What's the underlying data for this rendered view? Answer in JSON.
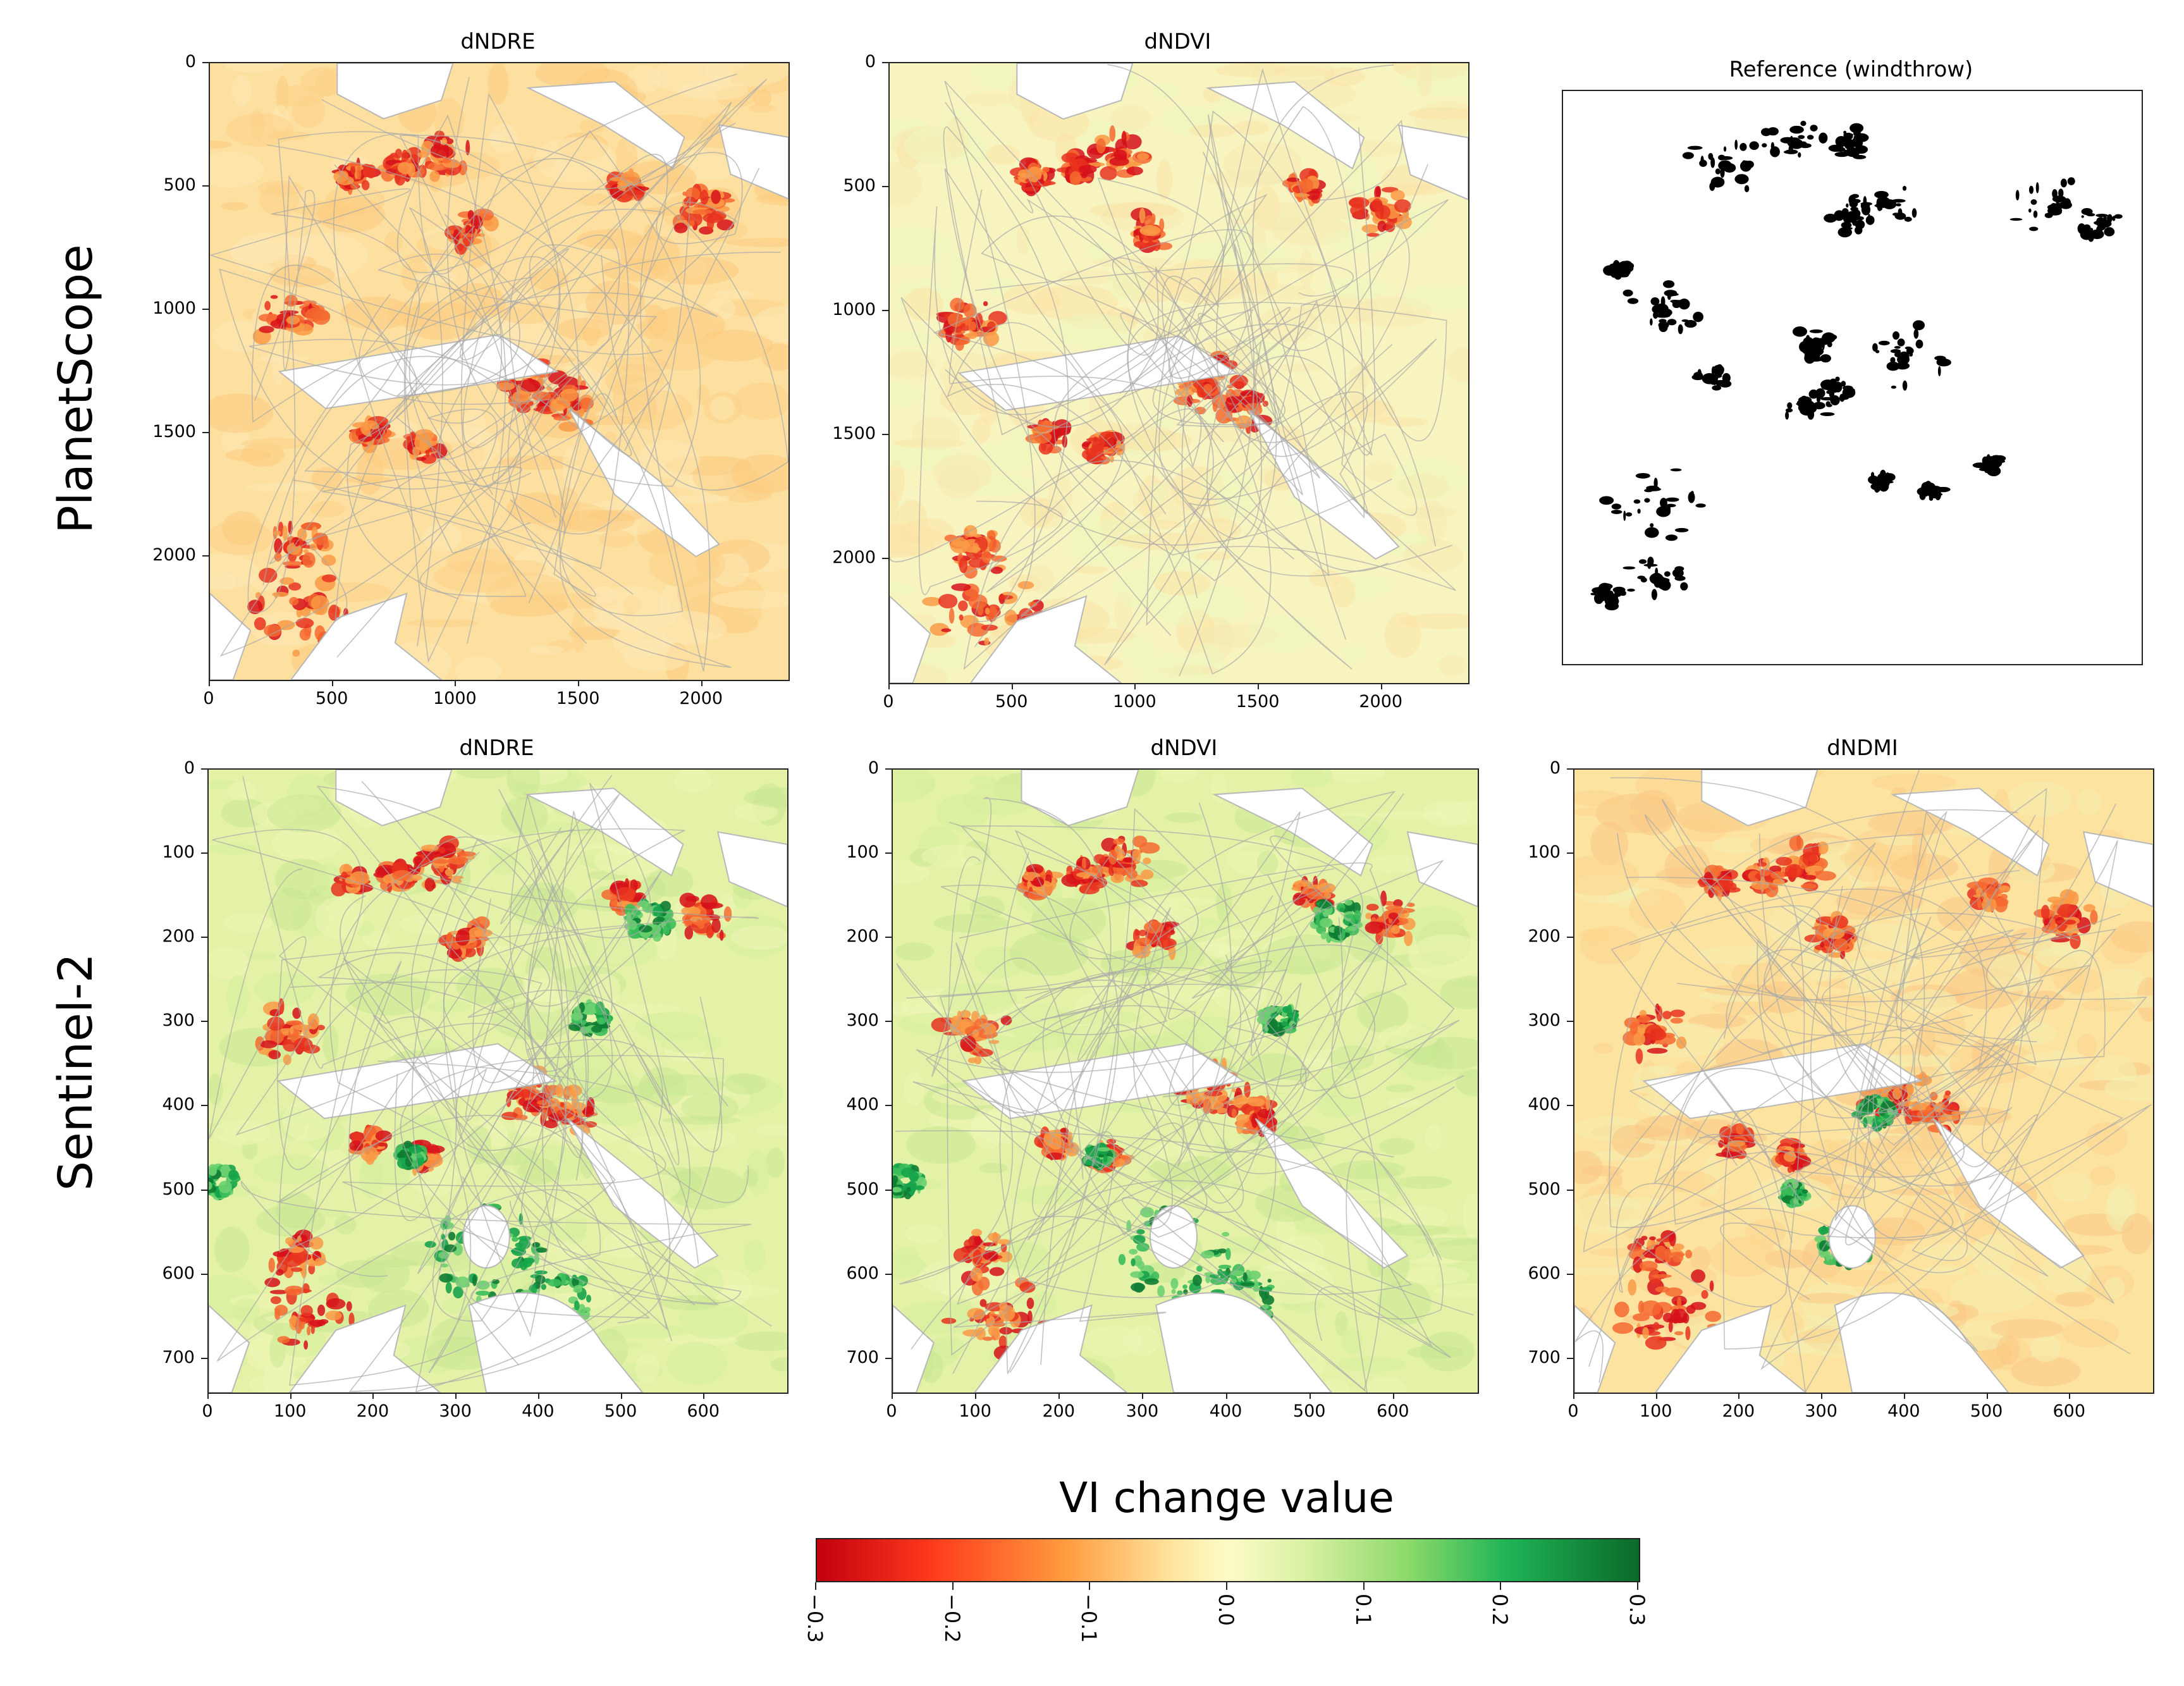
{
  "row_labels": [
    "PlanetScope",
    "Sentinel-2"
  ],
  "colorbar": {
    "title": "VI change value",
    "ticks": [
      "−0.3",
      "−0.2",
      "−0.1",
      "0.0",
      "0.1",
      "0.2",
      "0.3"
    ],
    "vmin": -0.3,
    "vmax": 0.3,
    "colors": [
      "#c2000f",
      "#ff3a1c",
      "#ff9a3e",
      "#ffe49c",
      "#fdfbc7",
      "#d6f0a0",
      "#8bd96a",
      "#1fb456",
      "#0b6a2a"
    ]
  },
  "panels": [
    {
      "id": "ps-dndre",
      "title": "dNDRE",
      "xticks": [
        "0",
        "500",
        "1000",
        "1500",
        "2000"
      ],
      "yticks": [
        "0",
        "500",
        "1000",
        "1500",
        "2000"
      ],
      "style": "ps"
    },
    {
      "id": "ps-dndvi",
      "title": "dNDVI",
      "xticks": [
        "0",
        "500",
        "1000",
        "1500",
        "2000"
      ],
      "yticks": [
        "0",
        "500",
        "1000",
        "1500",
        "2000"
      ],
      "style": "ps2"
    },
    {
      "id": "ps-ref",
      "title": "Reference (windthrow)",
      "xticks": [],
      "yticks": [],
      "style": "ref"
    },
    {
      "id": "s2-dndre",
      "title": "dNDRE",
      "xticks": [
        "0",
        "100",
        "200",
        "300",
        "400",
        "500",
        "600"
      ],
      "yticks": [
        "0",
        "100",
        "200",
        "300",
        "400",
        "500",
        "600",
        "700"
      ],
      "style": "s2"
    },
    {
      "id": "s2-dndvi",
      "title": "dNDVI",
      "xticks": [
        "0",
        "100",
        "200",
        "300",
        "400",
        "500",
        "600"
      ],
      "yticks": [
        "0",
        "100",
        "200",
        "300",
        "400",
        "500",
        "600",
        "700"
      ],
      "style": "s2"
    },
    {
      "id": "s2-dndmi",
      "title": "dNDMI",
      "xticks": [
        "0",
        "100",
        "200",
        "300",
        "400",
        "500",
        "600"
      ],
      "yticks": [
        "0",
        "100",
        "200",
        "300",
        "400",
        "500",
        "600",
        "700"
      ],
      "style": "s2b"
    }
  ],
  "chart_data": [
    {
      "type": "heatmap",
      "title": "dNDRE",
      "sensor": "PlanetScope",
      "xlim": [
        0,
        2350
      ],
      "ylim": [
        2500,
        0
      ],
      "clim": [
        -0.3,
        0.3
      ]
    },
    {
      "type": "heatmap",
      "title": "dNDVI",
      "sensor": "PlanetScope",
      "xlim": [
        0,
        2350
      ],
      "ylim": [
        2500,
        0
      ],
      "clim": [
        -0.3,
        0.3
      ]
    },
    {
      "type": "heatmap",
      "title": "Reference (windthrow)",
      "sensor": "PlanetScope",
      "binary": true
    },
    {
      "type": "heatmap",
      "title": "dNDRE",
      "sensor": "Sentinel-2",
      "xlim": [
        0,
        700
      ],
      "ylim": [
        740,
        0
      ],
      "clim": [
        -0.3,
        0.3
      ]
    },
    {
      "type": "heatmap",
      "title": "dNDVI",
      "sensor": "Sentinel-2",
      "xlim": [
        0,
        700
      ],
      "ylim": [
        740,
        0
      ],
      "clim": [
        -0.3,
        0.3
      ]
    },
    {
      "type": "heatmap",
      "title": "dNDMI",
      "sensor": "Sentinel-2",
      "xlim": [
        0,
        700
      ],
      "ylim": [
        740,
        0
      ],
      "clim": [
        -0.3,
        0.3
      ]
    }
  ]
}
